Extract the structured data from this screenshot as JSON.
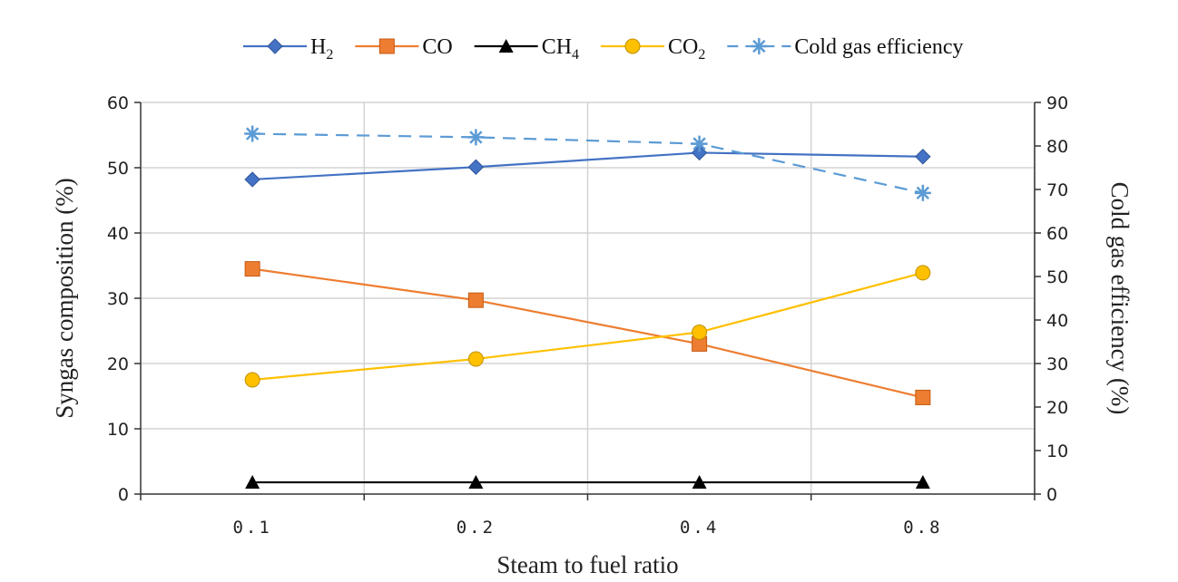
{
  "chart_data": {
    "type": "line",
    "categories": [
      "0.1",
      "0.2",
      "0.4",
      "0.8"
    ],
    "xlabel": "Steam to fuel ratio",
    "ylabel": "Syngas composition (%)",
    "y2label": "Cold gas efficiency (%)",
    "ylim": [
      0,
      60
    ],
    "y2lim": [
      0,
      90
    ],
    "yticks": [
      "0",
      "10",
      "20",
      "30",
      "40",
      "50",
      "60"
    ],
    "y2ticks": [
      "0",
      "10",
      "20",
      "30",
      "40",
      "50",
      "60",
      "70",
      "80",
      "90"
    ],
    "grid": true,
    "legend_position": "top",
    "series": [
      {
        "name": "H2",
        "label_base": "H",
        "label_sub": "2",
        "axis": "left",
        "marker": "diamond",
        "color": "#4472C4",
        "dash": false,
        "values": [
          48.2,
          50.1,
          52.3,
          51.7
        ]
      },
      {
        "name": "CO",
        "label_base": "CO",
        "label_sub": "",
        "axis": "left",
        "marker": "square",
        "color": "#ED7D31",
        "dash": false,
        "values": [
          34.5,
          29.7,
          23.0,
          14.8
        ]
      },
      {
        "name": "CH4",
        "label_base": "CH",
        "label_sub": "4",
        "axis": "left",
        "marker": "triangle",
        "color": "#000000",
        "dash": false,
        "values": [
          1.8,
          1.8,
          1.8,
          1.8
        ]
      },
      {
        "name": "CO2",
        "label_base": "CO",
        "label_sub": "2",
        "axis": "left",
        "marker": "circle",
        "color": "#FFC000",
        "dash": false,
        "values": [
          17.5,
          20.7,
          24.8,
          33.9
        ]
      },
      {
        "name": "Cold gas efficiency",
        "label_base": "Cold gas efficiency",
        "label_sub": "",
        "axis": "right",
        "marker": "star",
        "color": "#5B9BD5",
        "dash": true,
        "values": [
          82.8,
          82.0,
          80.5,
          69.2
        ]
      }
    ]
  }
}
